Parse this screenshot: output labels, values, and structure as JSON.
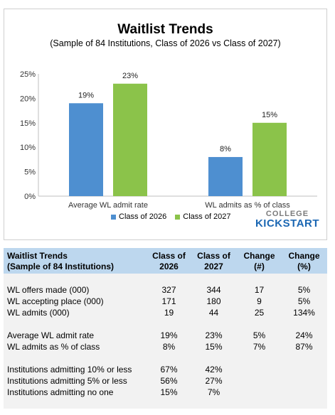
{
  "chart_data": {
    "type": "bar",
    "title": "Waitlist Trends",
    "subtitle": "(Sample of 84 Institutions, Class of 2026 vs Class of 2027)",
    "categories": [
      "Average WL admit rate",
      "WL admits as % of class"
    ],
    "series": [
      {
        "name": "Class of 2026",
        "values": [
          19,
          8
        ],
        "labels": [
          "19%",
          "8%"
        ],
        "color": "#4e8fd0"
      },
      {
        "name": "Class of 2027",
        "values": [
          23,
          15
        ],
        "labels": [
          "23%",
          "15%"
        ],
        "color": "#8bc34a"
      }
    ],
    "yticks": [
      "0%",
      "5%",
      "10%",
      "15%",
      "20%",
      "25%"
    ],
    "ylim": [
      0,
      25
    ],
    "legend_position": "bottom",
    "grid": false
  },
  "logo": {
    "top": "COLLEGE",
    "bottom": "KICKSTART"
  },
  "table": {
    "headers": {
      "label_line1": "Waitlist Trends",
      "label_line2": "(Sample of 84 Institutions)",
      "col1_line1": "Class of",
      "col1_line2": "2026",
      "col2_line1": "Class of",
      "col2_line2": "2027",
      "col3_line1": "Change",
      "col3_line2": "(#)",
      "col4_line1": "Change",
      "col4_line2": "(%)"
    },
    "rows": [
      {
        "label": "WL offers made (000)",
        "c2026": "327",
        "c2027": "344",
        "change_num": "17",
        "change_pct": "5%"
      },
      {
        "label": "WL accepting place (000)",
        "c2026": "171",
        "c2027": "180",
        "change_num": "9",
        "change_pct": "5%"
      },
      {
        "label": "WL admits (000)",
        "c2026": "19",
        "c2027": "44",
        "change_num": "25",
        "change_pct": "134%"
      },
      {
        "label": "Average WL admit rate",
        "c2026": "19%",
        "c2027": "23%",
        "change_num": "5%",
        "change_pct": "24%"
      },
      {
        "label": "WL admits as % of class",
        "c2026": "8%",
        "c2027": "15%",
        "change_num": "7%",
        "change_pct": "87%"
      },
      {
        "label": "Institutions admitting 10% or less",
        "c2026": "67%",
        "c2027": "42%",
        "change_num": "",
        "change_pct": ""
      },
      {
        "label": "Institutions admitting 5% or less",
        "c2026": "56%",
        "c2027": "27%",
        "change_num": "",
        "change_pct": ""
      },
      {
        "label": "Institutions admitting no one",
        "c2026": "15%",
        "c2027": "7%",
        "change_num": "",
        "change_pct": ""
      }
    ]
  }
}
